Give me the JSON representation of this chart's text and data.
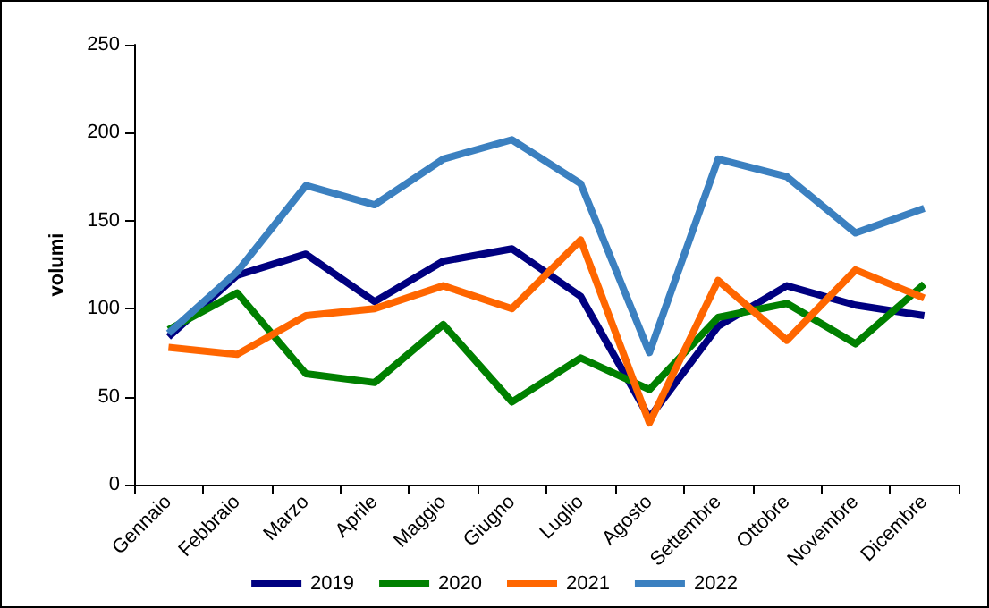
{
  "chart_data": {
    "type": "line",
    "ylabel": "volumi",
    "categories": [
      "Gennaio",
      "Febbraio",
      "Marzo",
      "Aprile",
      "Maggio",
      "Giugno",
      "Luglio",
      "Agosto",
      "Settembre",
      "Ottobre",
      "Novembre",
      "Dicembre"
    ],
    "series": [
      {
        "name": "2019",
        "color": "#000080",
        "values": [
          84,
          119,
          131,
          104,
          127,
          134,
          107,
          38,
          90,
          113,
          102,
          96
        ]
      },
      {
        "name": "2020",
        "color": "#008000",
        "values": [
          88,
          109,
          63,
          58,
          91,
          47,
          72,
          54,
          95,
          103,
          80,
          114
        ]
      },
      {
        "name": "2021",
        "color": "#ff6600",
        "values": [
          78,
          74,
          96,
          100,
          113,
          100,
          139,
          35,
          116,
          82,
          122,
          106
        ]
      },
      {
        "name": "2022",
        "color": "#3b80c0",
        "values": [
          86,
          121,
          170,
          159,
          185,
          196,
          171,
          75,
          185,
          175,
          143,
          157
        ]
      }
    ],
    "ylim": [
      0,
      250
    ],
    "yticks": [
      0,
      50,
      100,
      150,
      200,
      250
    ],
    "grid": false,
    "legend": "bottom",
    "marker": "none",
    "line_style": "solid"
  }
}
